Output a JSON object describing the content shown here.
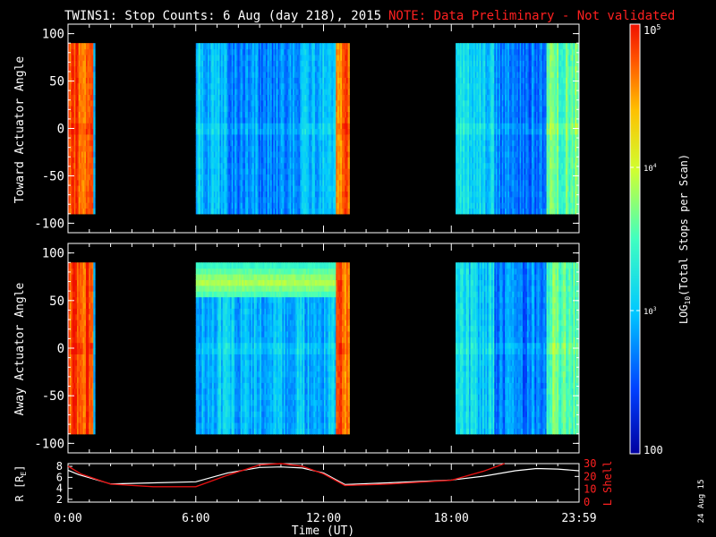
{
  "header": {
    "title": "TWINS1: Stop Counts:  6 Aug (day 218), 2015",
    "note": "NOTE: Data Preliminary - Not validated"
  },
  "colors": {
    "background": "#000000",
    "axis": "#ffffff",
    "note": "#ff2020",
    "l_shell": "#e01010",
    "r_line": "#ffffff"
  },
  "chart_data": [
    {
      "type": "heatmap",
      "name": "toward",
      "ylabel": "Toward Actuator Angle",
      "ylim": [
        -110,
        110
      ],
      "yticks": [
        100,
        50,
        0,
        -50,
        -100
      ],
      "ytick_labels": [
        "100",
        "50",
        "0",
        "-50",
        "-100"
      ],
      "angle_range": [
        -90,
        90
      ],
      "data_blocks_ut": [
        [
          0.0,
          1.2
        ],
        [
          6.0,
          13.2
        ],
        [
          18.2,
          24.0
        ]
      ],
      "log10_counts_summary": [
        {
          "ut_range": [
            0.0,
            1.2
          ],
          "level": 4.8
        },
        {
          "ut_range": [
            6.0,
            7.5
          ],
          "level": 3.0
        },
        {
          "ut_range": [
            7.5,
            11.0
          ],
          "level": 2.75
        },
        {
          "ut_range": [
            11.0,
            12.6
          ],
          "level": 3.0
        },
        {
          "ut_range": [
            12.6,
            13.2
          ],
          "level": 4.7
        },
        {
          "ut_range": [
            18.2,
            20.0
          ],
          "level": 3.1
        },
        {
          "ut_range": [
            20.0,
            22.5
          ],
          "level": 2.7
        },
        {
          "ut_range": [
            22.5,
            24.0
          ],
          "level": 3.6
        }
      ]
    },
    {
      "type": "heatmap",
      "name": "away",
      "ylabel": "Away Actuator Angle",
      "ylim": [
        -110,
        110
      ],
      "yticks": [
        100,
        50,
        0,
        -50,
        -100
      ],
      "ytick_labels": [
        "100",
        "50",
        "0",
        "-50",
        "-100"
      ],
      "angle_range": [
        -90,
        90
      ],
      "data_blocks_ut": [
        [
          0.0,
          1.2
        ],
        [
          6.0,
          13.2
        ],
        [
          18.2,
          24.0
        ]
      ],
      "log10_counts_summary": [
        {
          "ut_range": [
            0.0,
            1.2
          ],
          "level": 4.8
        },
        {
          "ut_range": [
            6.0,
            13.2
          ],
          "level": 2.95,
          "band_angle": [
            55,
            90
          ],
          "band_level": 3.9
        },
        {
          "ut_range": [
            12.6,
            13.2
          ],
          "level": 4.7
        },
        {
          "ut_range": [
            18.2,
            20.0
          ],
          "level": 3.1
        },
        {
          "ut_range": [
            20.0,
            22.5
          ],
          "level": 2.7
        },
        {
          "ut_range": [
            22.5,
            24.0
          ],
          "level": 3.6
        }
      ]
    },
    {
      "type": "line",
      "name": "orbit",
      "ylabel_left": "R [R",
      "ylabel_left_sub": "E",
      "ylabel_left_close": "]",
      "ylabel_right": "L Shell",
      "y_left_ticks": [
        "8",
        "6",
        "4",
        "2"
      ],
      "y_left_range": [
        1.5,
        8.5
      ],
      "y_right_ticks": [
        "30",
        "20",
        "10",
        "0"
      ],
      "y_right_range": [
        0,
        30
      ],
      "series": [
        {
          "name": "R",
          "x": [
            0.0,
            0.5,
            2.0,
            4.0,
            6.0,
            7.5,
            9.0,
            10.0,
            11.0,
            12.0,
            13.0,
            15.0,
            18.0,
            19.5,
            21.0,
            22.0,
            23.0,
            24.0
          ],
          "values": [
            7.3,
            6.5,
            4.8,
            5.0,
            5.2,
            6.8,
            7.8,
            7.9,
            7.7,
            6.8,
            4.7,
            5.0,
            5.5,
            6.2,
            7.2,
            7.6,
            7.5,
            7.2
          ]
        },
        {
          "name": "L Shell",
          "x": [
            0.0,
            0.6,
            2.0,
            4.0,
            6.0,
            7.5,
            9.0,
            10.0,
            11.0,
            12.0,
            13.0,
            15.0,
            18.0,
            19.5,
            20.5
          ],
          "values": [
            28,
            22,
            14,
            12,
            12,
            21,
            29,
            30,
            28,
            22,
            13,
            14,
            17,
            24,
            32
          ]
        }
      ]
    }
  ],
  "time_axis": {
    "xlabel": "Time (UT)",
    "ticks": [
      "0:00",
      "6:00",
      "12:00",
      "18:00",
      "23:59"
    ],
    "tick_hours": [
      0,
      6,
      12,
      18,
      24
    ]
  },
  "colorbar": {
    "label": "LOG",
    "label_sub": "10",
    "label_rest": "(Total Stops per Scan)",
    "tick_top": "10",
    "tick_top_exp": "5",
    "tick_mid1": "10",
    "tick_mid1_exp": "4",
    "tick_mid2": "10",
    "tick_mid2_exp": "3",
    "tick_bottom": "100",
    "log_range": [
      2,
      5
    ]
  },
  "side_date": "24 Aug 15"
}
